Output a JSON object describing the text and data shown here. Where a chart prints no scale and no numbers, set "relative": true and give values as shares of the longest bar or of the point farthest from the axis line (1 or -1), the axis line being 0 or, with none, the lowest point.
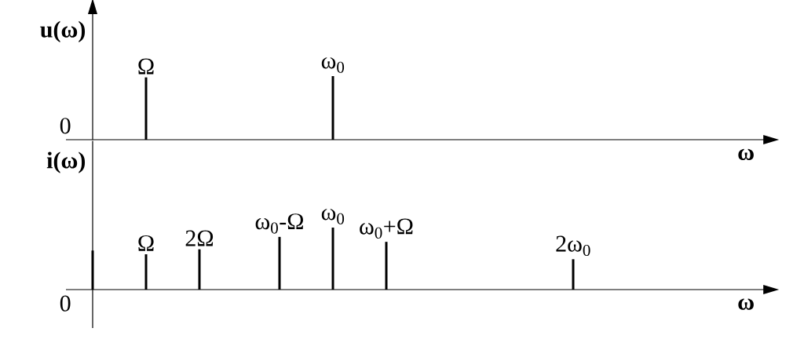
{
  "chart_data": [
    {
      "type": "bar",
      "relative": true,
      "ylabel": "u(ω)",
      "xlabel": "ω",
      "color": "#000000",
      "annotations": [
        "0"
      ],
      "categories": [
        null,
        null,
        "Ω",
        null,
        null,
        null,
        null,
        null,
        null,
        "ω$_{0}$",
        null,
        null,
        null,
        null,
        null,
        null,
        null,
        null,
        null,
        null,
        null,
        null,
        null,
        null,
        null
      ],
      "values": [
        null,
        null,
        0.98,
        null,
        null,
        null,
        null,
        null,
        null,
        1,
        null,
        null,
        null,
        null,
        null,
        null,
        null,
        null,
        null,
        null,
        null,
        null,
        null,
        null,
        null
      ]
    },
    {
      "type": "bar",
      "relative": true,
      "ylabel": "i(ω)",
      "xlabel": "ω",
      "color": "#000000",
      "annotations": [
        "0"
      ],
      "categories": [
        null,
        null,
        "Ω",
        null,
        "2Ω",
        null,
        null,
        "ω$_{0}$-Ω",
        null,
        "ω$_{0}$",
        null,
        "ω$_{0}$+Ω",
        null,
        null,
        null,
        null,
        null,
        null,
        "2ω$_{0}$",
        null,
        null,
        null,
        null,
        null,
        null
      ],
      "values": [
        0.63,
        null,
        0.57,
        null,
        0.65,
        null,
        null,
        0.85,
        null,
        1,
        null,
        0.77,
        null,
        null,
        null,
        null,
        null,
        null,
        0.49,
        null,
        null,
        null,
        null,
        null,
        null
      ]
    }
  ]
}
